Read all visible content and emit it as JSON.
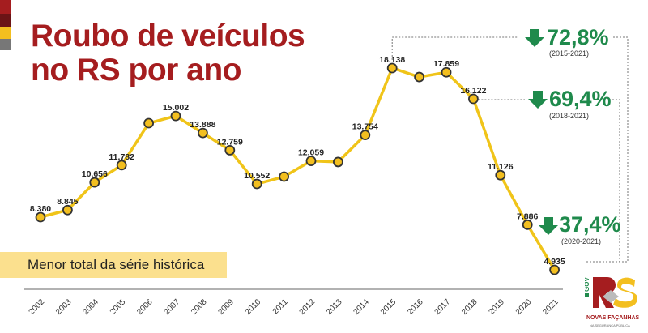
{
  "title_lines": [
    "Roubo de veículos",
    "no RS por ano"
  ],
  "note": "Menor total da série histórica",
  "colors": {
    "title": "#a51d1f",
    "line": "#f0c419",
    "marker_fill": "#f3bf1f",
    "marker_stroke": "#333333",
    "down": "#1f8a4c",
    "note_bg": "#fbe08e",
    "strips": [
      "#a51d1f",
      "#6b1416",
      "#f3bf1f",
      "#777777"
    ]
  },
  "annotations": [
    {
      "value": "72,8%",
      "range": "(2015-2021)",
      "icon": "arrow-down-icon"
    },
    {
      "value": "69,4%",
      "range": "(2018-2021)",
      "icon": "arrow-down-icon"
    },
    {
      "value": "37,4%",
      "range": "(2020-2021)",
      "icon": "arrow-down-icon"
    }
  ],
  "logo": {
    "text": "GOV RS",
    "tagline": "NOVAS FAÇANHAS",
    "sub": "NA SEGURANÇA PÚBLICA"
  },
  "chart_data": {
    "type": "line",
    "categories": [
      "2002",
      "2003",
      "2004",
      "2005",
      "2006",
      "2007",
      "2008",
      "2009",
      "2010",
      "2011",
      "2012",
      "2013",
      "2014",
      "2015",
      "2016",
      "2017",
      "2018",
      "2019",
      "2020",
      "2021"
    ],
    "values": [
      8380,
      8845,
      10656,
      11782,
      14530,
      15002,
      13888,
      12759,
      10552,
      11030,
      12059,
      11990,
      13754,
      18138,
      17550,
      17859,
      16122,
      11126,
      7886,
      4935
    ],
    "labels": [
      "8.380",
      "8.845",
      "10.656",
      "11.782",
      "",
      "15.002",
      "13.888",
      "12.759",
      "10.552",
      "",
      "12.059",
      "",
      "13.754",
      "18.138",
      "",
      "17.859",
      "16.122",
      "11.126",
      "7.886",
      "4.935"
    ],
    "grid": false,
    "y_axis_shown": false
  }
}
